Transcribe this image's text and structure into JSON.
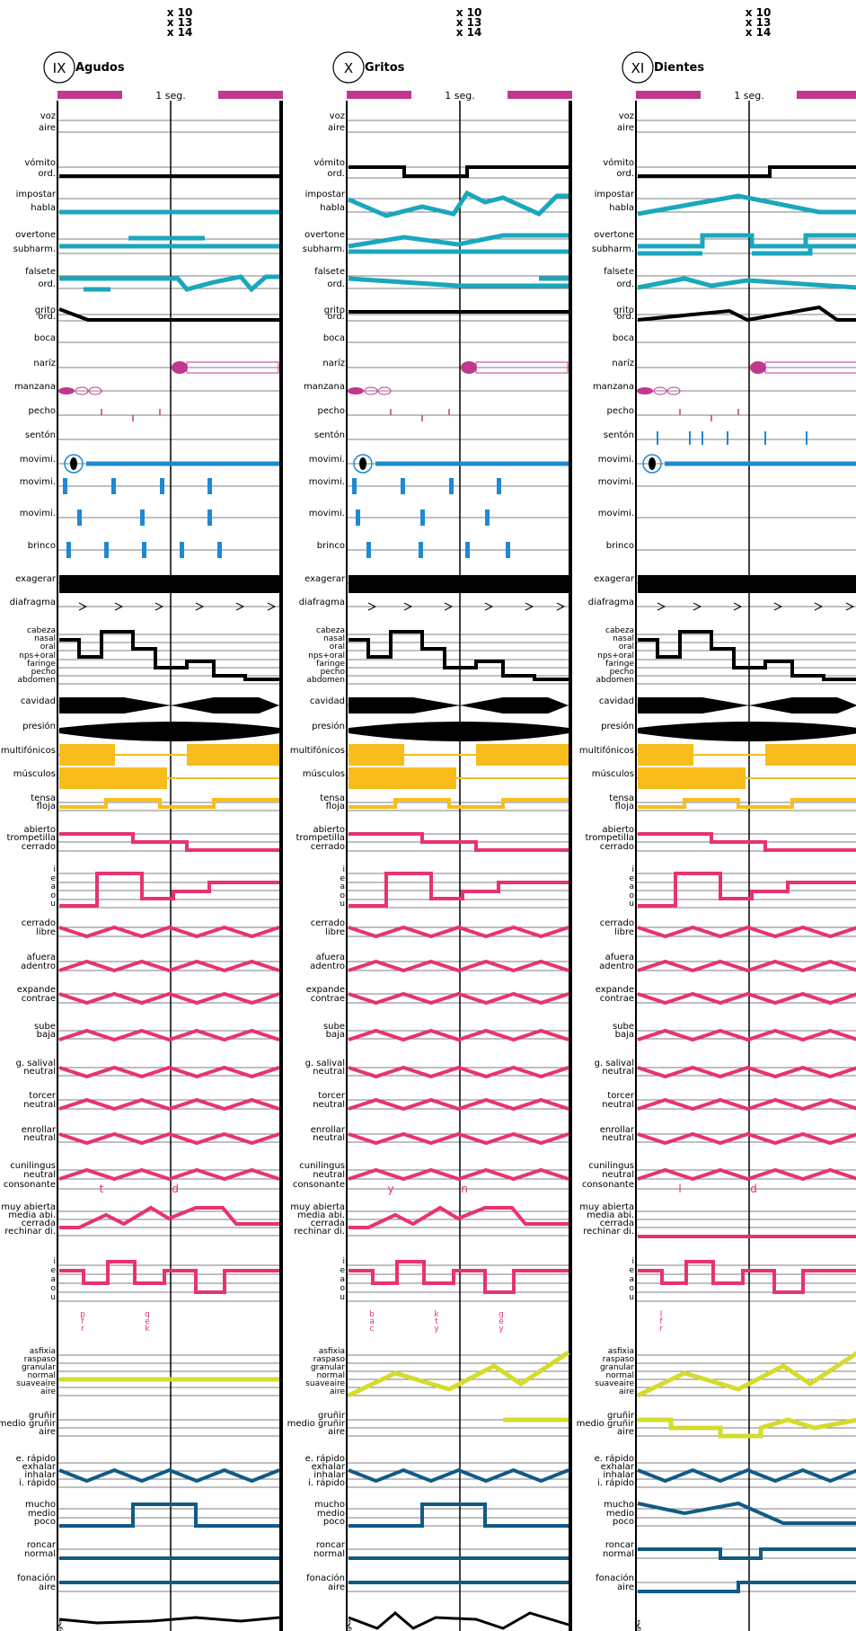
{
  "movements": [
    {
      "numeral": "IX",
      "title": "Agudos",
      "mult": [
        "x 10",
        "x 13",
        "x 14"
      ],
      "time_label": "1 seg."
    },
    {
      "numeral": "X",
      "title": "Gritos",
      "mult": [
        "x 10",
        "x 13",
        "x 14"
      ],
      "time_label": "1 seg."
    },
    {
      "numeral": "XI",
      "title": "Dientes",
      "mult": [
        "x 10",
        "x 13",
        "x 14"
      ],
      "time_label": "1 seg."
    }
  ],
  "labels": [
    [
      "voz",
      "aire"
    ],
    [
      "vómito",
      "ord."
    ],
    [
      "impostar",
      "habla"
    ],
    [
      "overtone",
      "subharm."
    ],
    [
      "falsete",
      "ord."
    ],
    [
      "grito",
      "ord."
    ],
    [
      "boca"
    ],
    [
      "naríz"
    ],
    [
      "manzana"
    ],
    [
      "pecho"
    ],
    [
      "sentón"
    ],
    [
      "movimi."
    ],
    [
      "movimi."
    ],
    [
      "movimi."
    ],
    [
      "brinco"
    ],
    [
      "exagerar"
    ],
    [
      "diafragma"
    ],
    [
      "cabeza",
      "nasal",
      "oral",
      "nps+oral",
      "faringe",
      "pecho",
      "abdomen"
    ],
    [
      "cavidad"
    ],
    [
      "presión"
    ],
    [
      "multifónicos"
    ],
    [
      "músculos"
    ],
    [
      "tensa",
      "floja"
    ],
    [
      "abierto",
      "trompetilla",
      "cerrado"
    ],
    [
      "i",
      "e",
      "a",
      "o",
      "u"
    ],
    [
      "cerrado",
      "libre"
    ],
    [
      "afuera",
      "adentro"
    ],
    [
      "expande",
      "contrae"
    ],
    [
      "sube",
      "baja"
    ],
    [
      "g. salival",
      "neutral"
    ],
    [
      "torcer",
      "neutral"
    ],
    [
      "enrollar",
      "neutral"
    ],
    [
      "cunilingus",
      "neutral"
    ],
    [
      "consonante"
    ],
    [
      "muy abierta",
      "media abi.",
      "cerrada",
      "rechinar di."
    ],
    [
      "i",
      "e",
      "a",
      "o",
      "u"
    ],
    [],
    [
      "asfixia",
      "raspaso",
      "granular",
      "normal",
      "suaveaire",
      "aire"
    ],
    [
      "gruñir",
      "medio gruñir",
      "aire"
    ],
    [
      "e. rápido",
      "exhalar",
      "inhalar",
      "i. rápido"
    ],
    [
      "mucho",
      "medio",
      "poco"
    ],
    [
      "roncar",
      "normal"
    ],
    [
      "fonación",
      "aire"
    ]
  ],
  "consonants": [
    [
      "t",
      "d"
    ],
    [
      "y",
      "n"
    ],
    [
      "l",
      "d"
    ]
  ],
  "small_letters": [
    [
      "p",
      "f",
      "r",
      "q",
      "e",
      "k"
    ],
    [
      "b",
      "a",
      "c",
      "k",
      "t",
      "y",
      "g",
      "e",
      "y"
    ],
    [
      "l",
      "f",
      "r"
    ]
  ],
  "colors": {
    "ink": "#000000",
    "cyan": "#1aa7bd",
    "blue": "#1d8ad1",
    "magenta": "#c2378f",
    "pink": "#e8336e",
    "yellow": "#f8bd1b",
    "lime": "#d4dc2c",
    "navy": "#125a86"
  }
}
